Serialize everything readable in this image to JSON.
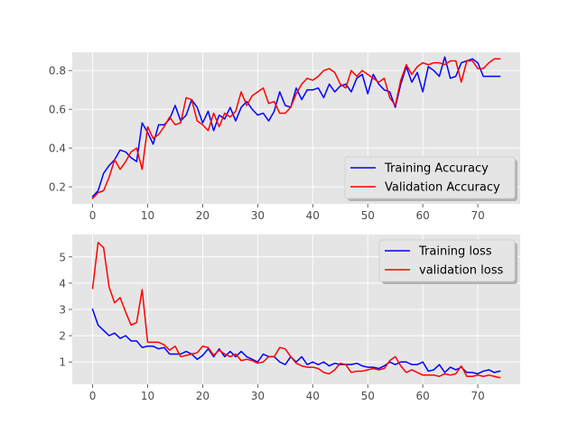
{
  "chart_data": [
    {
      "type": "line",
      "title": "",
      "xlabel": "",
      "ylabel": "",
      "xlim": [
        -3.7,
        77.7
      ],
      "ylim": [
        0.112,
        0.894
      ],
      "xticks": [
        0,
        10,
        20,
        30,
        40,
        50,
        60,
        70
      ],
      "yticks": [
        0.2,
        0.4,
        0.6,
        0.8
      ],
      "grid": true,
      "legend_position": "lower-right",
      "x": [
        0,
        1,
        2,
        3,
        4,
        5,
        6,
        7,
        8,
        9,
        10,
        11,
        12,
        13,
        14,
        15,
        16,
        17,
        18,
        19,
        20,
        21,
        22,
        23,
        24,
        25,
        26,
        27,
        28,
        29,
        30,
        31,
        32,
        33,
        34,
        35,
        36,
        37,
        38,
        39,
        40,
        41,
        42,
        43,
        44,
        45,
        46,
        47,
        48,
        49,
        50,
        51,
        52,
        53,
        54,
        55,
        56,
        57,
        58,
        59,
        60,
        61,
        62,
        63,
        64,
        65,
        66,
        67,
        68,
        69,
        70,
        71,
        72,
        73,
        74
      ],
      "series": [
        {
          "name": "Training Accuracy",
          "color": "#0000ff",
          "values": [
            0.15,
            0.18,
            0.27,
            0.31,
            0.34,
            0.39,
            0.38,
            0.35,
            0.33,
            0.53,
            0.48,
            0.42,
            0.52,
            0.52,
            0.55,
            0.62,
            0.54,
            0.57,
            0.65,
            0.61,
            0.53,
            0.59,
            0.49,
            0.57,
            0.55,
            0.61,
            0.54,
            0.61,
            0.64,
            0.6,
            0.57,
            0.58,
            0.54,
            0.59,
            0.69,
            0.62,
            0.61,
            0.71,
            0.65,
            0.7,
            0.7,
            0.71,
            0.66,
            0.73,
            0.69,
            0.72,
            0.73,
            0.69,
            0.76,
            0.78,
            0.68,
            0.78,
            0.73,
            0.7,
            0.69,
            0.61,
            0.73,
            0.82,
            0.74,
            0.79,
            0.69,
            0.82,
            0.8,
            0.77,
            0.87,
            0.76,
            0.77,
            0.84,
            0.85,
            0.86,
            0.84,
            0.77,
            0.77,
            0.77,
            0.77
          ]
        },
        {
          "name": "Validation Accuracy",
          "color": "#ff0000",
          "values": [
            0.14,
            0.17,
            0.18,
            0.25,
            0.34,
            0.29,
            0.33,
            0.38,
            0.4,
            0.29,
            0.51,
            0.45,
            0.47,
            0.51,
            0.56,
            0.52,
            0.53,
            0.66,
            0.65,
            0.54,
            0.52,
            0.49,
            0.58,
            0.51,
            0.58,
            0.56,
            0.59,
            0.69,
            0.62,
            0.67,
            0.69,
            0.71,
            0.63,
            0.64,
            0.58,
            0.58,
            0.61,
            0.68,
            0.73,
            0.76,
            0.75,
            0.77,
            0.8,
            0.81,
            0.79,
            0.73,
            0.71,
            0.8,
            0.77,
            0.8,
            0.78,
            0.76,
            0.74,
            0.76,
            0.66,
            0.62,
            0.75,
            0.83,
            0.78,
            0.82,
            0.84,
            0.83,
            0.84,
            0.84,
            0.83,
            0.85,
            0.85,
            0.74,
            0.85,
            0.85,
            0.81,
            0.81,
            0.84,
            0.86,
            0.86
          ]
        }
      ]
    },
    {
      "type": "line",
      "title": "",
      "xlabel": "",
      "ylabel": "",
      "xlim": [
        -3.7,
        77.7
      ],
      "ylim": [
        0.15,
        5.85
      ],
      "xticks": [
        0,
        10,
        20,
        30,
        40,
        50,
        60,
        70
      ],
      "yticks": [
        1,
        2,
        3,
        4,
        5
      ],
      "grid": true,
      "legend_position": "upper-right",
      "x": [
        0,
        1,
        2,
        3,
        4,
        5,
        6,
        7,
        8,
        9,
        10,
        11,
        12,
        13,
        14,
        15,
        16,
        17,
        18,
        19,
        20,
        21,
        22,
        23,
        24,
        25,
        26,
        27,
        28,
        29,
        30,
        31,
        32,
        33,
        34,
        35,
        36,
        37,
        38,
        39,
        40,
        41,
        42,
        43,
        44,
        45,
        46,
        47,
        48,
        49,
        50,
        51,
        52,
        53,
        54,
        55,
        56,
        57,
        58,
        59,
        60,
        61,
        62,
        63,
        64,
        65,
        66,
        67,
        68,
        69,
        70,
        71,
        72,
        73,
        74
      ],
      "series": [
        {
          "name": "Training loss",
          "color": "#0000ff",
          "values": [
            3.0,
            2.4,
            2.2,
            2.0,
            2.1,
            1.9,
            2.0,
            1.8,
            1.8,
            1.55,
            1.6,
            1.6,
            1.5,
            1.55,
            1.3,
            1.3,
            1.3,
            1.4,
            1.3,
            1.1,
            1.25,
            1.5,
            1.2,
            1.5,
            1.2,
            1.4,
            1.2,
            1.4,
            1.2,
            1.1,
            1.0,
            1.3,
            1.2,
            1.2,
            1.0,
            0.9,
            1.2,
            1.0,
            1.2,
            0.9,
            1.0,
            0.9,
            1.0,
            0.85,
            0.95,
            0.9,
            0.9,
            0.9,
            0.95,
            0.85,
            0.8,
            0.8,
            0.75,
            0.85,
            1.0,
            0.9,
            1.0,
            1.0,
            0.9,
            0.9,
            1.0,
            0.65,
            0.7,
            0.9,
            0.6,
            0.8,
            0.7,
            0.8,
            0.6,
            0.6,
            0.55,
            0.65,
            0.7,
            0.6,
            0.65
          ]
        },
        {
          "name": "validation loss",
          "color": "#ff0000",
          "values": [
            3.8,
            5.55,
            5.35,
            3.85,
            3.25,
            3.45,
            2.9,
            2.4,
            2.5,
            3.75,
            1.75,
            1.75,
            1.75,
            1.65,
            1.45,
            1.6,
            1.2,
            1.25,
            1.3,
            1.35,
            1.6,
            1.55,
            1.25,
            1.45,
            1.3,
            1.2,
            1.3,
            1.05,
            1.1,
            1.05,
            0.95,
            1.0,
            1.2,
            1.2,
            1.55,
            1.5,
            1.2,
            0.95,
            0.85,
            0.8,
            0.8,
            0.75,
            0.6,
            0.55,
            0.7,
            0.95,
            0.9,
            0.6,
            0.65,
            0.65,
            0.7,
            0.75,
            0.7,
            0.75,
            1.05,
            1.2,
            0.85,
            0.6,
            0.7,
            0.6,
            0.5,
            0.5,
            0.5,
            0.45,
            0.55,
            0.5,
            0.55,
            0.85,
            0.45,
            0.45,
            0.5,
            0.45,
            0.5,
            0.45,
            0.4
          ]
        }
      ]
    }
  ]
}
